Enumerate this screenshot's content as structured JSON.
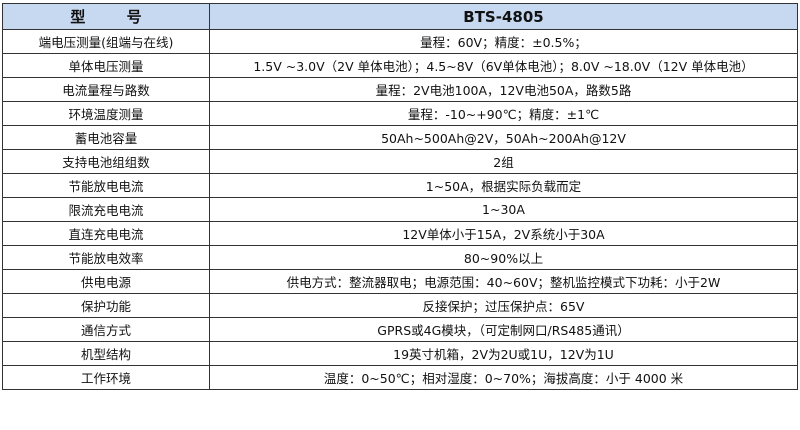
{
  "table": {
    "header": {
      "label": "型 号",
      "value": "BTS-4805"
    },
    "header_color": "#c6d9f1",
    "rows": [
      {
        "label": "端电压测量(组端与在线)",
        "value": "量程：60V；精度：±0.5%；"
      },
      {
        "label": "单体电压测量",
        "value": "1.5V ~3.0V（2V 单体电池）；4.5~8V（6V单体电池）；8.0V ~18.0V（12V 单体电池）"
      },
      {
        "label": "电流量程与路数",
        "value": "量程：2V电池100A，12V电池50A，路数5路"
      },
      {
        "label": "环境温度测量",
        "value": "量程：-10~+90℃；精度：±1℃"
      },
      {
        "label": "蓄电池容量",
        "value": "50Ah~500Ah@2V，50Ah~200Ah@12V"
      },
      {
        "label": "支持电池组组数",
        "value": "2组"
      },
      {
        "label": "节能放电电流",
        "value": "1~50A，根据实际负载而定"
      },
      {
        "label": "限流充电电流",
        "value": "1~30A"
      },
      {
        "label": "直连充电电流",
        "value": "12V单体小于15A，2V系统小于30A"
      },
      {
        "label": "节能放电效率",
        "value": "80~90%以上"
      },
      {
        "label": "供电电源",
        "value": "供电方式：整流器取电；电源范围：40~60V；整机监控模式下功耗：小于2W"
      },
      {
        "label": "保护功能",
        "value": "反接保护；过压保护点：65V"
      },
      {
        "label": "通信方式",
        "value": "GPRS或4G模块，（可定制网口/RS485通讯）"
      },
      {
        "label": "机型结构",
        "value": "19英寸机箱，2V为2U或1U，12V为1U"
      },
      {
        "label": "工作环境",
        "value": "温度：0~50℃；相对湿度：0~70%；海拔高度：小于 4000 米"
      }
    ]
  }
}
